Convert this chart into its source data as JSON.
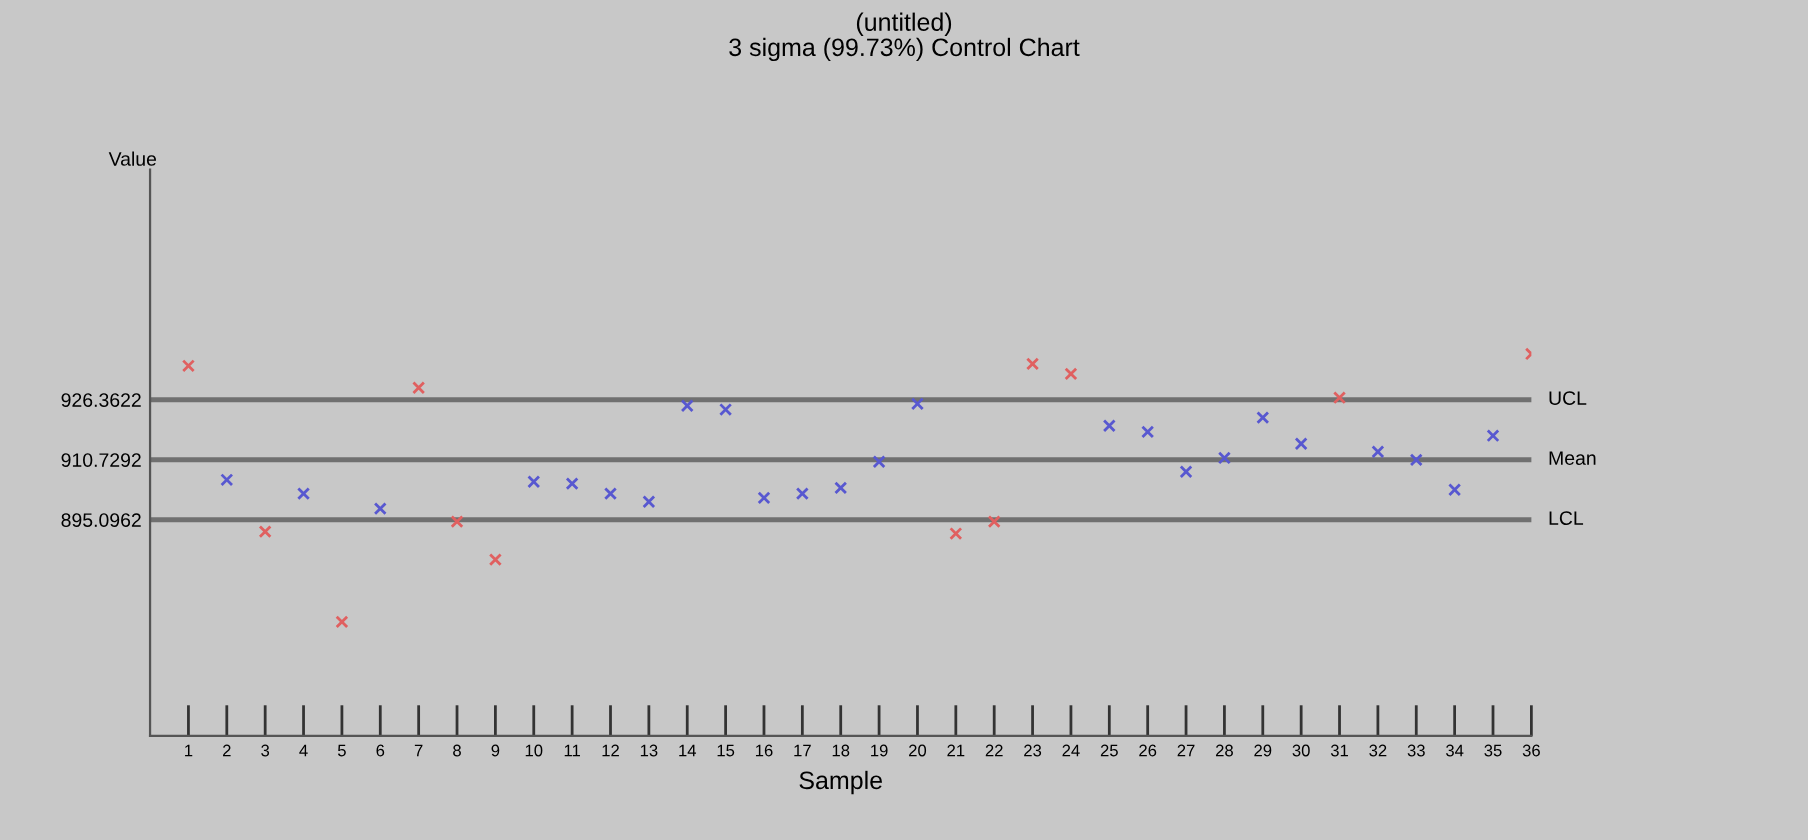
{
  "chart_data": {
    "type": "scatter",
    "title": "(untitled)",
    "subtitle": "3 sigma (99.73%) Control Chart",
    "xlabel": "Sample",
    "ylabel": "Value",
    "x": [
      1,
      2,
      3,
      4,
      5,
      6,
      7,
      8,
      9,
      10,
      11,
      12,
      13,
      14,
      15,
      16,
      17,
      18,
      19,
      20,
      21,
      22,
      23,
      24,
      25,
      26,
      27,
      28,
      29,
      30,
      31,
      32,
      33,
      34,
      35,
      36
    ],
    "values": [
      935.2,
      905.5,
      892.0,
      901.9,
      868.5,
      898.0,
      929.5,
      894.6,
      884.7,
      905.0,
      904.5,
      901.9,
      899.8,
      924.8,
      923.8,
      900.8,
      901.9,
      903.4,
      910.2,
      925.3,
      891.5,
      894.6,
      935.7,
      933.1,
      919.6,
      918.0,
      907.6,
      911.2,
      921.7,
      914.9,
      926.9,
      912.8,
      910.7,
      902.9,
      917.0,
      938.3
    ],
    "colors": [
      "#e06060",
      "#5858d0",
      "#e06060",
      "#5858d0",
      "#e06060",
      "#5858d0",
      "#e06060",
      "#e06060",
      "#e06060",
      "#5858d0",
      "#5858d0",
      "#5858d0",
      "#5858d0",
      "#5858d0",
      "#5858d0",
      "#5858d0",
      "#5858d0",
      "#5858d0",
      "#5858d0",
      "#5858d0",
      "#e06060",
      "#e06060",
      "#e06060",
      "#e06060",
      "#5858d0",
      "#5858d0",
      "#5858d0",
      "#5858d0",
      "#5858d0",
      "#5858d0",
      "#e06060",
      "#5858d0",
      "#5858d0",
      "#5858d0",
      "#5858d0",
      "#e06060"
    ],
    "marker": "cross",
    "xlim": [
      0,
      36
    ],
    "xticks": [
      1,
      2,
      3,
      4,
      5,
      6,
      7,
      8,
      9,
      10,
      11,
      12,
      13,
      14,
      15,
      16,
      17,
      18,
      19,
      20,
      21,
      22,
      23,
      24,
      25,
      26,
      27,
      28,
      29,
      30,
      31,
      32,
      33,
      34,
      35,
      36
    ],
    "ylim": [
      838.8,
      986.3
    ],
    "yticks": [
      895.0962,
      910.7292,
      926.3622
    ],
    "ref_lines": [
      {
        "axis": "y",
        "value": 926.3622,
        "label": "UCL",
        "color": "#707070"
      },
      {
        "axis": "y",
        "value": 910.7292,
        "label": "Mean",
        "color": "#707070"
      },
      {
        "axis": "y",
        "value": 895.0962,
        "label": "LCL",
        "color": "#707070"
      }
    ],
    "grid": false,
    "legend": false
  }
}
